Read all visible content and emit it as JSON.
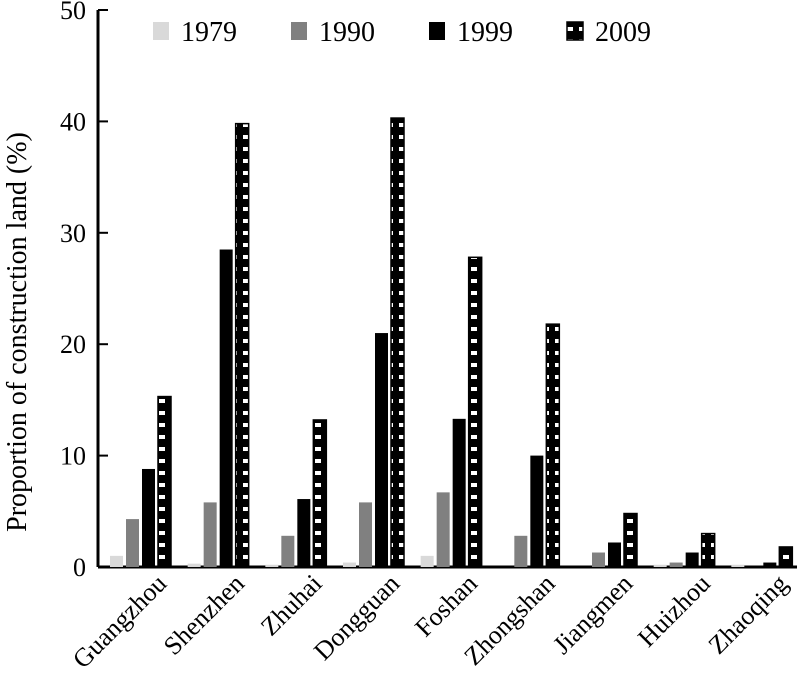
{
  "chart_data": {
    "type": "bar",
    "title": "",
    "xlabel": "",
    "ylabel": "Proportion of construction land (%)",
    "ylim": [
      0,
      50
    ],
    "yticks": [
      0,
      10,
      20,
      30,
      40,
      50
    ],
    "grid": false,
    "legend_position": "top",
    "categories": [
      "Guangzhou",
      "Shenzhen",
      "Zhuhai",
      "Dongguan",
      "Foshan",
      "Zhongshan",
      "Jiangmen",
      "Huizhou",
      "Zhaoqing"
    ],
    "series": [
      {
        "name": "1979",
        "color": "#d9d9d9",
        "pattern": "solid",
        "values": [
          1.0,
          0.3,
          0.2,
          0.4,
          1.0,
          0.0,
          0.0,
          0.2,
          0.2
        ]
      },
      {
        "name": "1990",
        "color": "#808080",
        "pattern": "solid",
        "values": [
          4.3,
          5.8,
          2.8,
          5.8,
          6.7,
          2.8,
          1.3,
          0.4,
          0.0
        ]
      },
      {
        "name": "1999",
        "color": "#000000",
        "pattern": "solid",
        "values": [
          8.8,
          28.5,
          6.1,
          21.0,
          13.3,
          10.0,
          2.2,
          1.3,
          0.4
        ]
      },
      {
        "name": "2009",
        "color": "#000000",
        "pattern": "hatched",
        "values": [
          15.3,
          39.8,
          13.2,
          40.3,
          27.8,
          21.8,
          4.8,
          3.0,
          1.8
        ]
      }
    ]
  }
}
